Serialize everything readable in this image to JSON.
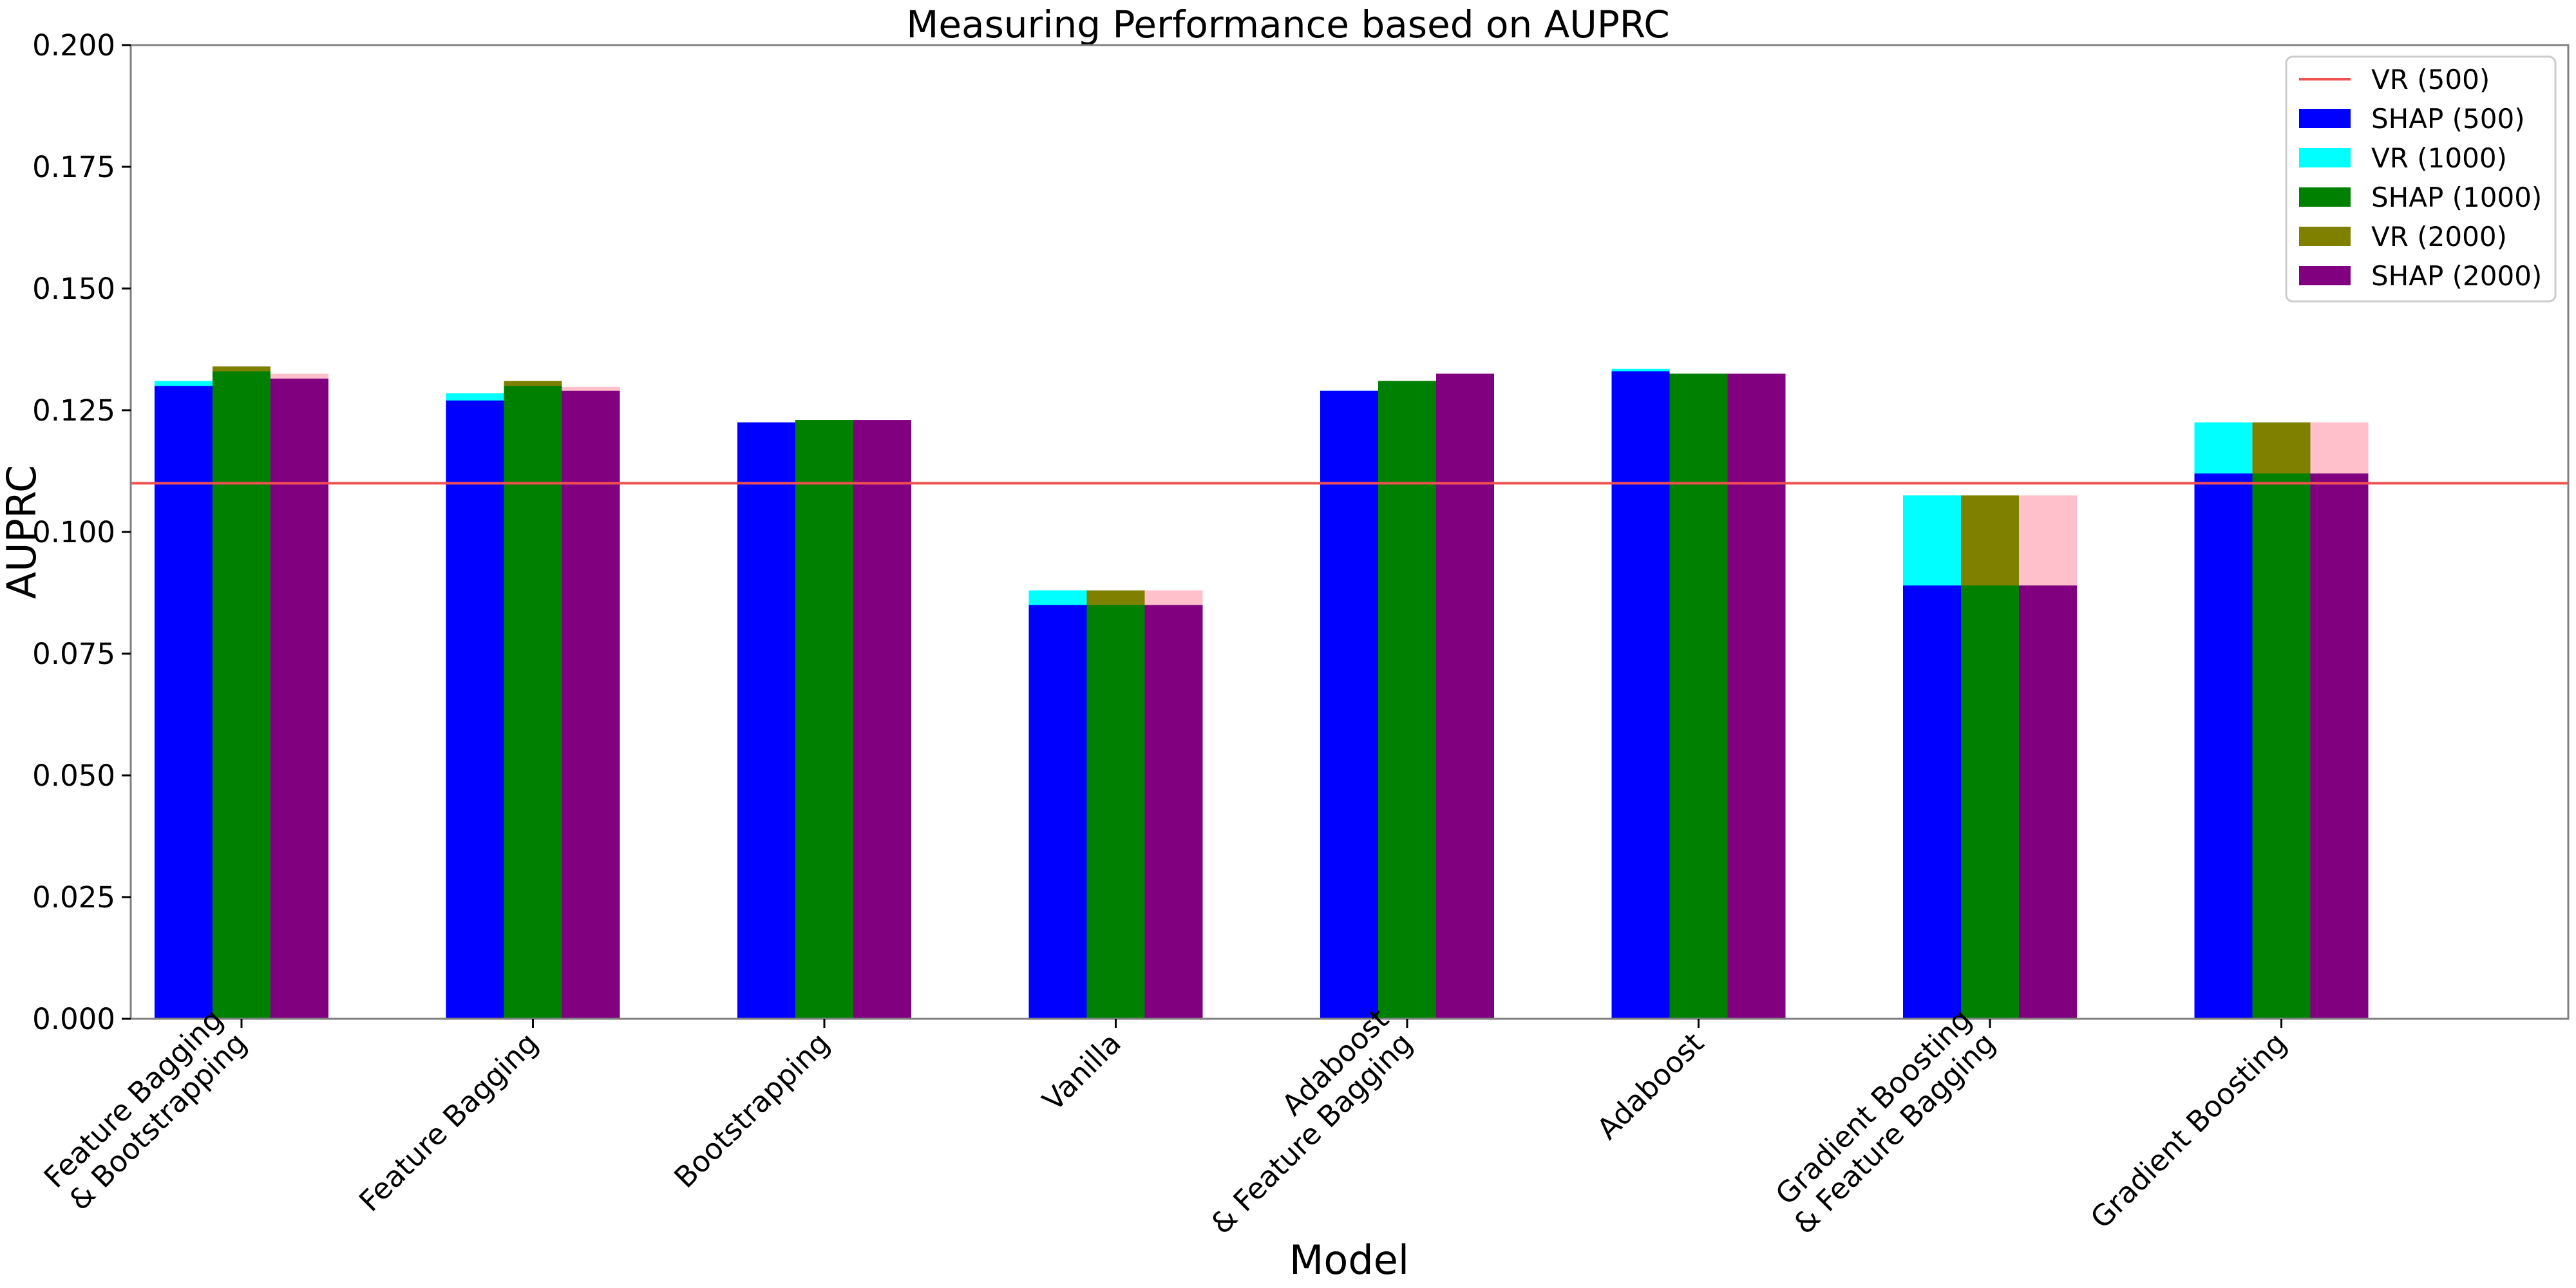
{
  "chart_data": {
    "type": "bar",
    "title": "Measuring Performance based on AUPRC",
    "xlabel": "Model",
    "ylabel": "AUPRC",
    "ylim": [
      0,
      0.2
    ],
    "yticks": [
      "0.000",
      "0.025",
      "0.050",
      "0.075",
      "0.100",
      "0.125",
      "0.150",
      "0.175",
      "0.200"
    ],
    "grid": false,
    "legend_position": "top-right",
    "categories": [
      [
        "Feature Bagging",
        "& Bootstrapping"
      ],
      [
        "Feature Bagging"
      ],
      [
        "Bootstrapping"
      ],
      [
        "Vanilla"
      ],
      [
        "Adaboost",
        "& Feature Bagging"
      ],
      [
        "Adaboost"
      ],
      [
        "Gradient Boosting",
        "& Feature Bagging"
      ],
      [
        "Gradient Boosting"
      ]
    ],
    "reference_line": {
      "name": "VR (500)",
      "value": 0.11,
      "color": "#f05050"
    },
    "groups": [
      {
        "shap_name": "SHAP (500)",
        "shap_color": "#0000ff",
        "vr_name": "VR (1000)",
        "vr_color": "#00ffff",
        "shap": [
          0.13,
          0.127,
          0.1225,
          0.085,
          0.129,
          0.133,
          0.089,
          0.112
        ],
        "vr": [
          0.131,
          0.1285,
          0.1225,
          0.088,
          0.129,
          0.1335,
          0.1075,
          0.1225
        ]
      },
      {
        "shap_name": "SHAP (1000)",
        "shap_color": "#008000",
        "vr_name": "VR (2000)",
        "vr_color": "#808000",
        "shap": [
          0.133,
          0.13,
          0.123,
          0.085,
          0.131,
          0.1325,
          0.089,
          0.112
        ],
        "vr": [
          0.134,
          0.131,
          0.123,
          0.088,
          0.131,
          0.1325,
          0.1075,
          0.1225
        ]
      },
      {
        "shap_name": "SHAP (2000)",
        "shap_color": "#800080",
        "vr_name": "",
        "vr_color": "#ffc0cb",
        "shap": [
          0.1315,
          0.129,
          0.123,
          0.085,
          0.1325,
          0.1325,
          0.089,
          0.112
        ],
        "vr": [
          0.1325,
          0.1298,
          0.123,
          0.088,
          0.1325,
          0.1325,
          0.1075,
          0.1225
        ]
      }
    ],
    "legend": [
      {
        "label": "VR (500)",
        "kind": "line",
        "color": "#f05050"
      },
      {
        "label": "SHAP (500)",
        "kind": "patch",
        "color": "#0000ff"
      },
      {
        "label": "VR (1000)",
        "kind": "patch",
        "color": "#00ffff"
      },
      {
        "label": "SHAP (1000)",
        "kind": "patch",
        "color": "#008000"
      },
      {
        "label": "VR (2000)",
        "kind": "patch",
        "color": "#808000"
      },
      {
        "label": "SHAP (2000)",
        "kind": "patch",
        "color": "#800080"
      }
    ]
  }
}
